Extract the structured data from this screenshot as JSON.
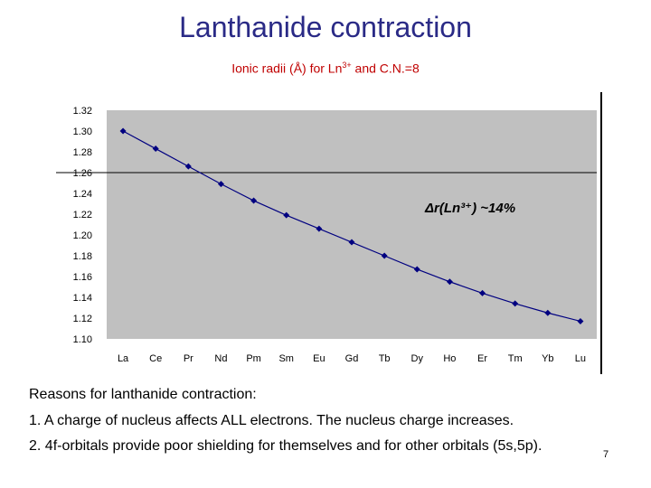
{
  "slide": {
    "title": "Lanthanide contraction",
    "subtitle_pre": "Ionic radii (Å) for Ln",
    "subtitle_sup": "3+",
    "subtitle_post": " and C.N.=8",
    "annotation": "Δr(Ln³⁺) ~14%",
    "reasons_heading": "Reasons for lanthanide contraction:",
    "reason_1": "1. A charge of nucleus affects  ALL electrons. The nucleus charge increases.",
    "reason_2": "2. 4f-orbitals provide poor shielding for themselves and for other orbitals (5s,5p).",
    "page_number": "7"
  },
  "chart_data": {
    "type": "line",
    "categories": [
      "La",
      "Ce",
      "Pr",
      "Nd",
      "Pm",
      "Sm",
      "Eu",
      "Gd",
      "Tb",
      "Dy",
      "Ho",
      "Er",
      "Tm",
      "Yb",
      "Lu"
    ],
    "values": [
      1.3,
      1.283,
      1.266,
      1.249,
      1.233,
      1.219,
      1.206,
      1.193,
      1.18,
      1.167,
      1.155,
      1.144,
      1.134,
      1.125,
      1.117
    ],
    "ylim": [
      1.1,
      1.32
    ],
    "yticks": [
      "1.32",
      "1.30",
      "1.28",
      "1.26",
      "1.24",
      "1.22",
      "1.20",
      "1.18",
      "1.16",
      "1.14",
      "1.12",
      "1.10"
    ],
    "ytick_values": [
      1.32,
      1.3,
      1.28,
      1.26,
      1.24,
      1.22,
      1.2,
      1.18,
      1.16,
      1.14,
      1.12,
      1.1
    ],
    "highlight_gridline": 1.26,
    "colors": {
      "plot_bg": "#c0c0c0",
      "line": "#000080",
      "marker": "#000080"
    },
    "marker": "diamond",
    "legend": "none"
  }
}
